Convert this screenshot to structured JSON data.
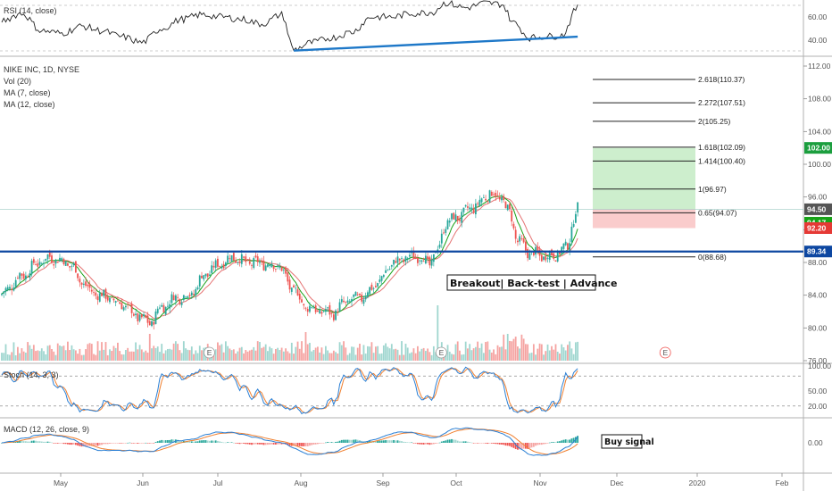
{
  "header": {
    "rsi_label": "RSI (14, close)",
    "symbol_label": "NIKE INC, 1D, NYSE",
    "vol_label": "Vol (20)",
    "ma7_label": "MA (7, close)",
    "ma12_label": "MA (12, close)",
    "stoch_label": "Stoch (14, 3, 3)",
    "macd_label": "MACD (12, 26, close, 9)"
  },
  "colors": {
    "up": "#26a69a",
    "down": "#ef5350",
    "up_vol": "#9fd6cf",
    "down_vol": "#f5a3a1",
    "ma7": "#18a318",
    "ma12": "#e57373",
    "resistance": "#0d47a1",
    "rsi_trend": "#1e78c8",
    "stoch_k": "#2a7fd4",
    "stoch_d": "#f08030",
    "profit_zone": "#c8ecc8",
    "loss_zone": "#f9c7c7"
  },
  "annotations": {
    "breakout": "Breakout| Back-test | Advance",
    "buy_signal": "Buy signal",
    "earnings_marker": "E"
  },
  "price_tags": {
    "target": "102.00",
    "close": "94.50",
    "ma7": "94.17",
    "stop": "92.20",
    "resistance": "89.34"
  },
  "fib_labels": [
    "2.618(110.37)",
    "2.272(107.51)",
    "2(105.25)",
    "1.618(102.09)",
    "1.414(100.40)",
    "1(96.97)",
    "0.65(94.07)",
    "0(88.68)"
  ],
  "chart_data": {
    "type": "candlestick",
    "symbol": "NIKE INC",
    "interval": "1D",
    "exchange": "NYSE",
    "x_ticks": [
      "May",
      "Jun",
      "Jul",
      "Aug",
      "Sep",
      "Oct",
      "Nov",
      "Dec",
      "2020",
      "Feb"
    ],
    "price_axis_ticks": [
      "112.00",
      "108.00",
      "104.00",
      "100.00",
      "96.00",
      "92.00",
      "88.00",
      "84.00",
      "80.00",
      "76.00"
    ],
    "price_range": [
      76,
      112
    ],
    "rsi_ticks": [
      "60.00",
      "40.00"
    ],
    "stoch_ticks": [
      "100.00",
      "50.00",
      "20.00"
    ],
    "macd_ticks": [
      "0.00"
    ],
    "price_anchors": [
      [
        0,
        84.2
      ],
      [
        10,
        86.4
      ],
      [
        18,
        87.9
      ],
      [
        24,
        88.6
      ],
      [
        30,
        88.2
      ],
      [
        35,
        87.6
      ],
      [
        40,
        85.6
      ],
      [
        45,
        84.4
      ],
      [
        52,
        83.8
      ],
      [
        60,
        82.9
      ],
      [
        68,
        81.4
      ],
      [
        74,
        80.6
      ],
      [
        80,
        82.6
      ],
      [
        88,
        83.8
      ],
      [
        94,
        84.0
      ],
      [
        102,
        86.6
      ],
      [
        110,
        88.0
      ],
      [
        116,
        88.7
      ],
      [
        122,
        88.0
      ],
      [
        130,
        87.9
      ],
      [
        138,
        87.6
      ],
      [
        146,
        84.6
      ],
      [
        152,
        82.6
      ],
      [
        160,
        82.0
      ],
      [
        166,
        81.8
      ],
      [
        172,
        83.2
      ],
      [
        180,
        83.8
      ],
      [
        188,
        85.4
      ],
      [
        194,
        87.6
      ],
      [
        200,
        88.4
      ],
      [
        208,
        88.8
      ],
      [
        214,
        87.9
      ],
      [
        218,
        89.6
      ],
      [
        222,
        92.8
      ],
      [
        228,
        93.6
      ],
      [
        236,
        94.8
      ],
      [
        244,
        96.4
      ],
      [
        250,
        95.8
      ],
      [
        254,
        94.0
      ],
      [
        258,
        90.6
      ],
      [
        264,
        89.2
      ],
      [
        270,
        88.8
      ],
      [
        276,
        88.9
      ],
      [
        282,
        89.8
      ],
      [
        288,
        94.5
      ]
    ],
    "volume_spikes": [
      [
        74,
        30
      ],
      [
        152,
        32
      ],
      [
        218,
        62
      ]
    ],
    "rsi_anchors": [
      [
        0,
        57
      ],
      [
        10,
        63
      ],
      [
        20,
        48
      ],
      [
        30,
        46
      ],
      [
        40,
        52
      ],
      [
        50,
        48
      ],
      [
        60,
        43
      ],
      [
        70,
        38
      ],
      [
        80,
        50
      ],
      [
        90,
        58
      ],
      [
        100,
        62
      ],
      [
        110,
        60
      ],
      [
        120,
        58
      ],
      [
        130,
        54
      ],
      [
        140,
        62
      ],
      [
        146,
        32
      ],
      [
        155,
        38
      ],
      [
        165,
        42
      ],
      [
        175,
        47
      ],
      [
        185,
        60
      ],
      [
        195,
        60
      ],
      [
        205,
        63
      ],
      [
        215,
        64
      ],
      [
        222,
        72
      ],
      [
        232,
        68
      ],
      [
        242,
        72
      ],
      [
        250,
        71
      ],
      [
        256,
        55
      ],
      [
        264,
        42
      ],
      [
        270,
        43
      ],
      [
        280,
        44
      ],
      [
        288,
        68
      ]
    ],
    "rsi_trendline": [
      [
        146,
        31
      ],
      [
        288,
        43
      ]
    ],
    "resistance_level": 89.34,
    "trade_zones": {
      "entry": 94.5,
      "target": 102.0,
      "stop": 92.2
    },
    "fib_levels": [
      {
        "ratio": 2.618,
        "price": 110.37
      },
      {
        "ratio": 2.272,
        "price": 107.51
      },
      {
        "ratio": 2,
        "price": 105.25
      },
      {
        "ratio": 1.618,
        "price": 102.09
      },
      {
        "ratio": 1.414,
        "price": 100.4
      },
      {
        "ratio": 1,
        "price": 96.97
      },
      {
        "ratio": 0.65,
        "price": 94.07
      },
      {
        "ratio": 0,
        "price": 88.68
      }
    ],
    "earnings_markers": [
      102,
      218,
      330
    ]
  }
}
